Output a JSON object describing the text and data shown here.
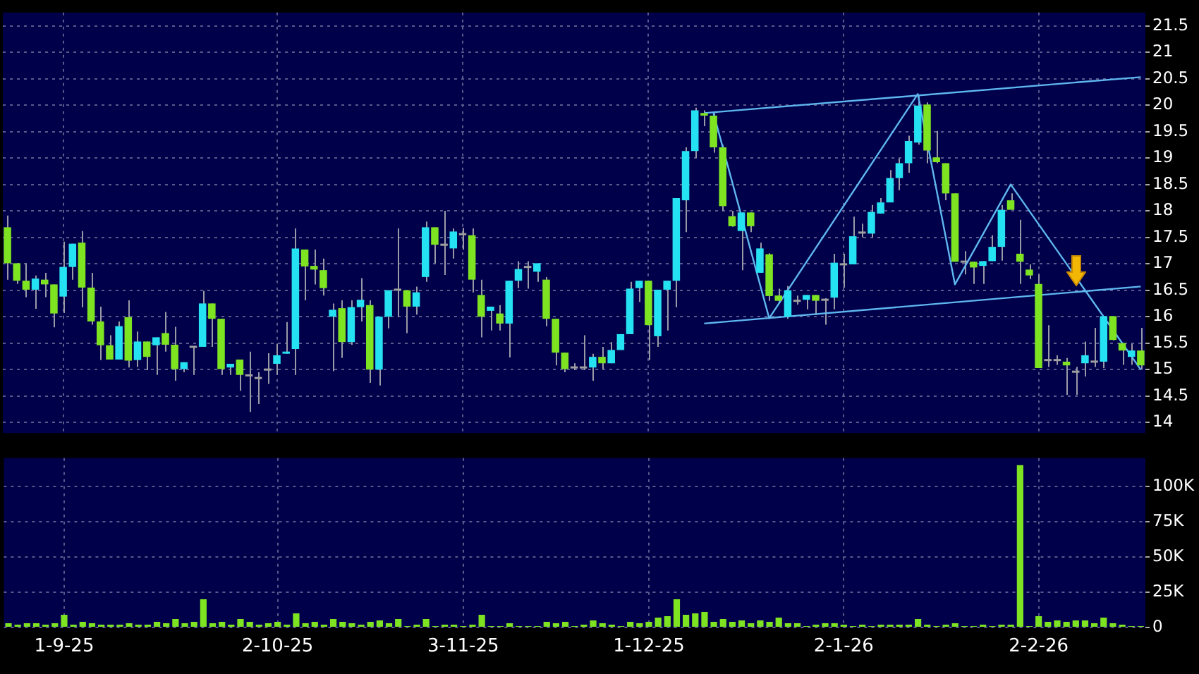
{
  "chart_data": [
    {
      "type": "candlestick",
      "categories": [
        null,
        null,
        null,
        null,
        null,
        null,
        null,
        null,
        null,
        null,
        null,
        null,
        null,
        null,
        null,
        null,
        null,
        null,
        null,
        null,
        null,
        null,
        null,
        null,
        null,
        null,
        null,
        null,
        null,
        null,
        null,
        null,
        null,
        null,
        null,
        null,
        null,
        null,
        null,
        null,
        null,
        null,
        null,
        null,
        null,
        null,
        null,
        null,
        null,
        null,
        null,
        null,
        null,
        null,
        null,
        null,
        null,
        null,
        null,
        null,
        null,
        null,
        null,
        null,
        null,
        null,
        null,
        null,
        null,
        null,
        null,
        null,
        null,
        null,
        null,
        null,
        null,
        null,
        null,
        null,
        null,
        null,
        null,
        null,
        null,
        null,
        null,
        null,
        null,
        null,
        null,
        null,
        null,
        null,
        null,
        null,
        null,
        null,
        null,
        null,
        null,
        null,
        null,
        null,
        null,
        null,
        null,
        null,
        null,
        null,
        null,
        null,
        null,
        null,
        null,
        null,
        null,
        null,
        null,
        null,
        null,
        null,
        null
      ],
      "ohlc": [
        [
          17.69,
          17.91,
          16.7,
          17.01
        ],
        [
          17.01,
          17.01,
          16.62,
          16.68
        ],
        [
          16.68,
          17.01,
          16.37,
          16.51
        ],
        [
          16.51,
          16.78,
          16.15,
          16.72
        ],
        [
          16.7,
          16.83,
          16.37,
          16.61
        ],
        [
          16.61,
          16.61,
          15.8,
          16.06
        ],
        [
          16.38,
          17.42,
          16.07,
          16.94
        ],
        [
          16.94,
          17.38,
          16.7,
          17.38
        ],
        [
          17.4,
          17.62,
          16.18,
          16.55
        ],
        [
          16.55,
          16.83,
          15.85,
          15.91
        ],
        [
          15.91,
          16.19,
          15.18,
          15.46
        ],
        [
          15.46,
          15.65,
          15.19,
          15.19
        ],
        [
          15.19,
          15.91,
          15.19,
          15.82
        ],
        [
          15.99,
          16.31,
          15.04,
          15.17
        ],
        [
          15.18,
          15.72,
          15.05,
          15.53
        ],
        [
          15.53,
          15.53,
          14.99,
          15.24
        ],
        [
          15.46,
          15.61,
          14.9,
          15.61
        ],
        [
          15.69,
          16.09,
          15.34,
          15.47
        ],
        [
          15.47,
          15.81,
          14.79,
          15.01
        ],
        [
          15.01,
          15.14,
          14.95,
          15.14
        ],
        [
          15.43,
          15.43,
          14.9,
          15.43
        ],
        [
          15.43,
          16.49,
          15.43,
          16.25
        ],
        [
          16.25,
          16.25,
          15.43,
          15.96
        ],
        [
          15.96,
          15.96,
          14.9,
          15.01
        ],
        [
          15.04,
          15.11,
          14.9,
          15.11
        ],
        [
          15.19,
          15.19,
          14.6,
          14.9
        ],
        [
          14.89,
          15.34,
          14.2,
          14.89
        ],
        [
          14.84,
          14.95,
          14.35,
          14.84
        ],
        [
          15.0,
          15.31,
          14.73,
          15.0
        ],
        [
          15.11,
          15.49,
          14.9,
          15.27
        ],
        [
          15.3,
          15.9,
          15.3,
          15.34
        ],
        [
          15.39,
          17.67,
          14.9,
          17.29
        ],
        [
          17.27,
          17.27,
          16.31,
          16.95
        ],
        [
          16.96,
          17.27,
          16.61,
          16.89
        ],
        [
          16.88,
          17.1,
          16.4,
          16.54
        ],
        [
          16.0,
          16.25,
          14.97,
          16.13
        ],
        [
          16.16,
          16.31,
          15.22,
          15.52
        ],
        [
          15.52,
          16.31,
          15.47,
          16.18
        ],
        [
          16.18,
          16.73,
          15.91,
          16.32
        ],
        [
          16.22,
          16.31,
          14.75,
          15.0
        ],
        [
          15.0,
          16.0,
          14.7,
          16.0
        ],
        [
          16.0,
          16.5,
          15.78,
          16.5
        ],
        [
          16.51,
          17.67,
          16.0,
          16.51
        ],
        [
          16.5,
          16.5,
          15.69,
          16.19
        ],
        [
          16.19,
          16.57,
          16.04,
          16.46
        ],
        [
          16.75,
          17.8,
          16.66,
          17.69
        ],
        [
          17.69,
          17.69,
          17.01,
          17.36
        ],
        [
          17.36,
          18.0,
          16.79,
          17.36
        ],
        [
          17.29,
          17.67,
          17.1,
          17.61
        ],
        [
          17.56,
          17.68,
          17.27,
          17.56
        ],
        [
          17.54,
          17.67,
          16.46,
          16.7
        ],
        [
          16.41,
          16.7,
          15.61,
          16.0
        ],
        [
          16.11,
          16.19,
          15.74,
          16.19
        ],
        [
          16.06,
          16.22,
          15.74,
          15.87
        ],
        [
          15.87,
          16.68,
          15.23,
          16.68
        ],
        [
          16.68,
          17.05,
          16.54,
          16.9
        ],
        [
          16.94,
          17.05,
          16.53,
          16.94
        ],
        [
          16.85,
          17.01,
          16.66,
          17.01
        ],
        [
          16.7,
          16.75,
          15.82,
          15.96
        ],
        [
          15.96,
          15.96,
          15.08,
          15.32
        ],
        [
          15.32,
          15.32,
          14.95,
          15.01
        ],
        [
          15.04,
          15.12,
          14.99,
          15.04
        ],
        [
          15.04,
          15.65,
          14.99,
          15.04
        ],
        [
          15.04,
          15.3,
          14.79,
          15.24
        ],
        [
          15.24,
          15.43,
          15.01,
          15.12
        ],
        [
          15.12,
          15.52,
          15.12,
          15.37
        ],
        [
          15.37,
          15.67,
          15.37,
          15.67
        ],
        [
          15.67,
          16.66,
          15.67,
          16.53
        ],
        [
          16.54,
          16.68,
          16.28,
          16.68
        ],
        [
          16.68,
          16.68,
          15.18,
          15.84
        ],
        [
          15.63,
          16.51,
          15.43,
          16.51
        ],
        [
          16.51,
          16.68,
          15.74,
          16.68
        ],
        [
          16.68,
          18.24,
          16.18,
          18.24
        ],
        [
          18.2,
          19.2,
          17.6,
          19.13
        ],
        [
          19.13,
          19.95,
          19.0,
          19.9
        ],
        [
          19.85,
          19.9,
          19.6,
          19.8
        ],
        [
          19.8,
          19.85,
          19.1,
          19.2
        ],
        [
          19.2,
          19.25,
          18.0,
          18.09
        ],
        [
          17.9,
          18.0,
          17.7,
          17.71
        ],
        [
          17.62,
          17.97,
          16.88,
          17.97
        ],
        [
          17.97,
          17.97,
          17.6,
          17.71
        ],
        [
          16.83,
          17.4,
          16.83,
          17.29
        ],
        [
          17.18,
          17.2,
          16.3,
          16.39
        ],
        [
          16.4,
          16.53,
          16.25,
          16.3
        ],
        [
          16.0,
          16.58,
          15.96,
          16.5
        ],
        [
          16.3,
          16.4,
          16.23,
          16.3
        ],
        [
          16.32,
          16.41,
          16.14,
          16.41
        ],
        [
          16.41,
          16.41,
          16.03,
          16.3
        ],
        [
          16.32,
          16.35,
          15.85,
          16.32
        ],
        [
          16.36,
          17.19,
          16.14,
          17.02
        ],
        [
          16.99,
          17.19,
          16.55,
          16.99
        ],
        [
          16.99,
          17.89,
          16.99,
          17.52
        ],
        [
          17.59,
          17.76,
          17.5,
          17.59
        ],
        [
          17.57,
          18.11,
          17.5,
          17.98
        ],
        [
          17.95,
          18.24,
          17.95,
          18.16
        ],
        [
          18.16,
          18.77,
          18.16,
          18.62
        ],
        [
          18.62,
          18.99,
          18.39,
          18.9
        ],
        [
          18.9,
          19.42,
          18.72,
          19.32
        ],
        [
          19.29,
          20.17,
          19.25,
          19.99
        ],
        [
          20.01,
          20.05,
          18.9,
          19.14
        ],
        [
          19.01,
          19.51,
          18.9,
          18.92
        ],
        [
          18.9,
          18.9,
          18.2,
          18.33
        ],
        [
          18.33,
          18.33,
          17.04,
          17.04
        ],
        [
          17.04,
          17.24,
          16.8,
          17.04
        ],
        [
          17.04,
          17.04,
          16.62,
          16.93
        ],
        [
          16.96,
          17.05,
          16.62,
          17.05
        ],
        [
          17.05,
          17.54,
          17.05,
          17.32
        ],
        [
          17.32,
          18.11,
          17.06,
          18.02
        ],
        [
          18.2,
          18.33,
          18.02,
          18.02
        ],
        [
          17.19,
          17.83,
          16.62,
          17.04
        ],
        [
          16.89,
          16.99,
          16.71,
          16.78
        ],
        [
          16.62,
          16.8,
          15.03,
          15.03
        ],
        [
          15.18,
          15.84,
          15.05,
          15.18
        ],
        [
          15.18,
          15.27,
          15.09,
          15.18
        ],
        [
          15.15,
          15.22,
          14.52,
          15.08
        ],
        [
          14.96,
          15.05,
          14.52,
          14.96
        ],
        [
          15.12,
          15.53,
          14.87,
          15.27
        ],
        [
          15.15,
          15.79,
          15.05,
          15.15
        ],
        [
          15.15,
          16.01,
          15.03,
          16.01
        ],
        [
          16.01,
          16.01,
          15.55,
          15.56
        ],
        [
          15.5,
          15.5,
          15.09,
          15.36
        ],
        [
          15.24,
          15.49,
          15.09,
          15.36
        ],
        [
          15.36,
          15.79,
          15.0,
          15.08
        ]
      ],
      "colors": [
        "#7ee321",
        "#7ee321",
        "#7ee321",
        "#25e2f2",
        "#7ee321",
        "#7ee321",
        "#25e2f2",
        "#25e2f2",
        "#7ee321",
        "#7ee321",
        "#7ee321",
        "#7ee321",
        "#25e2f2",
        "#7ee321",
        "#25e2f2",
        "#7ee321",
        "#25e2f2",
        "#7ee321",
        "#7ee321",
        "#25e2f2",
        "#a0a0a0",
        "#25e2f2",
        "#7ee321",
        "#7ee321",
        "#25e2f2",
        "#7ee321",
        "#a0a0a0",
        "#a0a0a0",
        "#a0a0a0",
        "#25e2f2",
        "#25e2f2",
        "#25e2f2",
        "#7ee321",
        "#7ee321",
        "#7ee321",
        "#25e2f2",
        "#7ee321",
        "#25e2f2",
        "#25e2f2",
        "#7ee321",
        "#25e2f2",
        "#25e2f2",
        "#a0a0a0",
        "#7ee321",
        "#25e2f2",
        "#25e2f2",
        "#7ee321",
        "#a0a0a0",
        "#25e2f2",
        "#a0a0a0",
        "#7ee321",
        "#7ee321",
        "#25e2f2",
        "#7ee321",
        "#25e2f2",
        "#25e2f2",
        "#a0a0a0",
        "#25e2f2",
        "#7ee321",
        "#7ee321",
        "#7ee321",
        "#a0a0a0",
        "#a0a0a0",
        "#25e2f2",
        "#7ee321",
        "#25e2f2",
        "#25e2f2",
        "#25e2f2",
        "#25e2f2",
        "#7ee321",
        "#25e2f2",
        "#25e2f2",
        "#25e2f2",
        "#25e2f2",
        "#25e2f2",
        "#7ee321",
        "#7ee321",
        "#7ee321",
        "#7ee321",
        "#25e2f2",
        "#7ee321",
        "#25e2f2",
        "#7ee321",
        "#7ee321",
        "#25e2f2",
        "#a0a0a0",
        "#25e2f2",
        "#7ee321",
        "#a0a0a0",
        "#25e2f2",
        "#a0a0a0",
        "#25e2f2",
        "#a0a0a0",
        "#25e2f2",
        "#25e2f2",
        "#25e2f2",
        "#25e2f2",
        "#25e2f2",
        "#25e2f2",
        "#7ee321",
        "#7ee321",
        "#7ee321",
        "#7ee321",
        "#a0a0a0",
        "#7ee321",
        "#25e2f2",
        "#25e2f2",
        "#25e2f2",
        "#7ee321",
        "#7ee321",
        "#7ee321",
        "#7ee321",
        "#a0a0a0",
        "#a0a0a0",
        "#7ee321",
        "#a0a0a0",
        "#25e2f2",
        "#a0a0a0",
        "#25e2f2",
        "#7ee321",
        "#7ee321",
        "#25e2f2",
        "#7ee321"
      ],
      "series": [
        {
          "type": "line",
          "color": "#5fb7ef",
          "values": [
            null,
            null,
            null,
            null,
            null,
            null,
            null,
            null,
            null,
            null,
            null,
            null,
            null,
            null,
            null,
            null,
            null,
            null,
            null,
            null,
            null,
            null,
            null,
            null,
            null,
            null,
            null,
            null,
            null,
            null,
            null,
            null,
            null,
            null,
            null,
            null,
            null,
            null,
            null,
            null,
            null,
            null,
            null,
            null,
            null,
            null,
            null,
            null,
            null,
            null,
            null,
            null,
            null,
            null,
            null,
            null,
            null,
            null,
            null,
            null,
            null,
            null,
            null,
            null,
            null,
            null,
            null,
            null,
            null,
            null,
            null,
            null,
            null,
            null,
            null,
            19.85,
            null,
            null,
            null,
            null,
            null,
            null,
            null,
            null,
            null,
            null,
            null,
            null,
            null,
            null,
            null,
            null,
            null,
            null,
            null,
            null,
            null,
            null,
            null,
            null,
            null,
            null,
            null,
            null,
            null,
            null,
            null,
            null,
            null,
            null,
            null,
            null,
            null,
            null,
            null,
            null,
            null,
            null,
            null,
            null,
            null,
            null,
            20.53
          ]
        },
        {
          "type": "line",
          "color": "#5fb7ef",
          "values": [
            null,
            null,
            null,
            null,
            null,
            null,
            null,
            null,
            null,
            null,
            null,
            null,
            null,
            null,
            null,
            null,
            null,
            null,
            null,
            null,
            null,
            null,
            null,
            null,
            null,
            null,
            null,
            null,
            null,
            null,
            null,
            null,
            null,
            null,
            null,
            null,
            null,
            null,
            null,
            null,
            null,
            null,
            null,
            null,
            null,
            null,
            null,
            null,
            null,
            null,
            null,
            null,
            null,
            null,
            null,
            null,
            null,
            null,
            null,
            null,
            null,
            null,
            null,
            null,
            null,
            null,
            null,
            null,
            null,
            null,
            null,
            null,
            null,
            null,
            null,
            15.87,
            null,
            null,
            null,
            null,
            null,
            null,
            null,
            null,
            null,
            null,
            null,
            null,
            null,
            null,
            null,
            null,
            null,
            null,
            null,
            null,
            null,
            null,
            null,
            null,
            null,
            null,
            null,
            null,
            null,
            null,
            null,
            null,
            null,
            null,
            null,
            null,
            null,
            null,
            null,
            null,
            null,
            null,
            null,
            null,
            null,
            null,
            16.57
          ]
        },
        {
          "type": "line",
          "color": "#5fb7ef",
          "values": [
            null,
            null,
            null,
            null,
            null,
            null,
            null,
            null,
            null,
            null,
            null,
            null,
            null,
            null,
            null,
            null,
            null,
            null,
            null,
            null,
            null,
            null,
            null,
            null,
            null,
            null,
            null,
            null,
            null,
            null,
            null,
            null,
            null,
            null,
            null,
            null,
            null,
            null,
            null,
            null,
            null,
            null,
            null,
            null,
            null,
            null,
            null,
            null,
            null,
            null,
            null,
            null,
            null,
            null,
            null,
            null,
            null,
            null,
            null,
            null,
            null,
            null,
            null,
            null,
            null,
            null,
            null,
            null,
            null,
            null,
            null,
            null,
            null,
            null,
            null,
            null,
            19.85,
            null,
            null,
            null,
            null,
            null,
            15.97,
            null,
            null,
            null,
            null,
            null,
            null,
            null,
            null,
            null,
            null,
            null,
            null,
            null,
            null,
            null,
            20.21,
            null,
            null,
            null,
            16.61,
            null,
            null,
            null,
            null,
            null,
            18.5,
            null,
            null,
            null,
            null,
            null,
            null,
            null,
            null,
            null,
            null,
            null,
            null,
            null,
            15.0
          ]
        }
      ],
      "ylim": [
        13.8,
        21.75
      ],
      "yticks": [
        14,
        14.5,
        15,
        15.5,
        16,
        16.5,
        17,
        17.5,
        18,
        18.5,
        19,
        19.5,
        20,
        20.5,
        21,
        21.5
      ],
      "grid": true,
      "tick_labels": "y"
    },
    {
      "type": "bar",
      "categories": [
        null,
        null,
        null,
        null,
        null,
        null,
        "1-9-25",
        null,
        null,
        null,
        null,
        null,
        null,
        null,
        null,
        null,
        null,
        null,
        null,
        null,
        null,
        null,
        null,
        null,
        null,
        null,
        null,
        null,
        null,
        "2-10-25",
        null,
        null,
        null,
        null,
        null,
        null,
        null,
        null,
        null,
        null,
        null,
        null,
        null,
        null,
        null,
        null,
        null,
        null,
        null,
        "3-11-25",
        null,
        null,
        null,
        null,
        null,
        null,
        null,
        null,
        null,
        null,
        null,
        null,
        null,
        null,
        null,
        null,
        null,
        null,
        null,
        "1-12-25",
        null,
        null,
        null,
        null,
        null,
        null,
        null,
        null,
        null,
        null,
        null,
        null,
        null,
        null,
        null,
        null,
        null,
        null,
        null,
        null,
        "2-1-26",
        null,
        null,
        null,
        null,
        null,
        null,
        null,
        null,
        null,
        null,
        null,
        null,
        null,
        null,
        null,
        null,
        null,
        null,
        null,
        null,
        "2-2-26",
        null,
        null,
        null,
        null,
        null,
        null,
        null,
        null,
        null,
        null,
        null
      ],
      "values": [
        3000,
        2000,
        3000,
        3000,
        2000,
        3000,
        9000,
        2000,
        4000,
        3000,
        2000,
        2000,
        2000,
        3000,
        2000,
        2000,
        4000,
        3000,
        6000,
        3000,
        4000,
        20000,
        3000,
        4000,
        2000,
        6000,
        4000,
        2000,
        3000,
        4000,
        2000,
        10000,
        3000,
        4000,
        2000,
        6000,
        4000,
        3000,
        2000,
        4000,
        5000,
        3000,
        6000,
        1000,
        2000,
        6000,
        1000,
        2000,
        2000,
        1000,
        2000,
        9000,
        1000,
        1000,
        3000,
        1000,
        1000,
        1000,
        4000,
        3000,
        4000,
        1000,
        2000,
        5000,
        3000,
        2000,
        1000,
        4000,
        3000,
        4000,
        7000,
        8000,
        20000,
        9000,
        10000,
        11000,
        4000,
        6000,
        4000,
        5000,
        3000,
        5000,
        4000,
        7000,
        3000,
        3000,
        1000,
        2000,
        3000,
        3000,
        2000,
        1000,
        2000,
        1000,
        2000,
        2000,
        2000,
        2000,
        6000,
        2000,
        1000,
        2000,
        3000,
        1000,
        1000,
        2000,
        1000,
        2000,
        2000,
        115000,
        1000,
        8000,
        4000,
        5000,
        4000,
        5000,
        5000,
        3000,
        7000,
        3000,
        2000,
        1000,
        1000
      ],
      "color": "#7ee321",
      "ylim": [
        0,
        120000
      ],
      "yticks": [
        0,
        {
          "value": 25000,
          "label": "25K"
        },
        {
          "value": 50000,
          "label": "50K"
        },
        {
          "value": 75000,
          "label": "75K"
        },
        {
          "value": 100000,
          "label": "100K"
        }
      ],
      "grid": true
    }
  ]
}
